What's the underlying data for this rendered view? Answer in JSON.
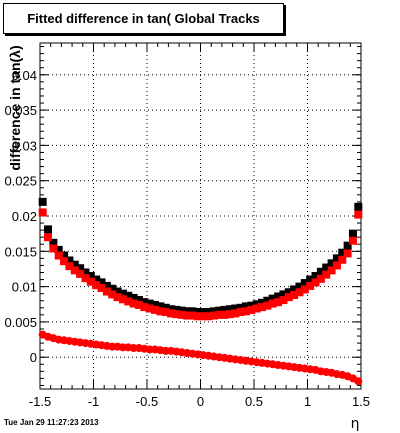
{
  "title": "Fitted difference in tan( Global Tracks",
  "timestamp": "Tue Jan 29 11:27:23 2013",
  "chart_data": {
    "type": "scatter",
    "title": "Fitted difference in tan( Global Tracks",
    "xlabel": "η",
    "ylabel": "difference in tan(λ)",
    "xlim": [
      -1.5,
      1.5
    ],
    "ylim": [
      -0.0045,
      0.0445
    ],
    "grid": true,
    "x_ticks": [
      "-1.5",
      "-1",
      "-0.5",
      "0",
      "0.5",
      "1",
      "1.5"
    ],
    "y_ticks": [
      "0",
      "0.005",
      "0.01",
      "0.015",
      "0.02",
      "0.025",
      "0.03",
      "0.035",
      "0.04"
    ],
    "series": [
      {
        "marker": "square",
        "color": "#000000",
        "x": [
          -1.475,
          -1.425,
          -1.375,
          -1.325,
          -1.275,
          -1.225,
          -1.175,
          -1.125,
          -1.075,
          -1.025,
          -0.975,
          -0.925,
          -0.875,
          -0.825,
          -0.775,
          -0.725,
          -0.675,
          -0.625,
          -0.575,
          -0.525,
          -0.475,
          -0.425,
          -0.375,
          -0.325,
          -0.275,
          -0.225,
          -0.175,
          -0.125,
          -0.075,
          -0.025,
          0.025,
          0.075,
          0.125,
          0.175,
          0.225,
          0.275,
          0.325,
          0.375,
          0.425,
          0.475,
          0.525,
          0.575,
          0.625,
          0.675,
          0.725,
          0.775,
          0.825,
          0.875,
          0.925,
          0.975,
          1.025,
          1.075,
          1.125,
          1.175,
          1.225,
          1.275,
          1.325,
          1.375,
          1.425,
          1.475
        ],
        "values": [
          0.022,
          0.0181,
          0.0162,
          0.0152,
          0.0144,
          0.0137,
          0.0131,
          0.0126,
          0.012,
          0.0115,
          0.011,
          0.0106,
          0.0101,
          0.0097,
          0.0093,
          0.009,
          0.0087,
          0.0084,
          0.0081,
          0.0078,
          0.0076,
          0.0074,
          0.0072,
          0.007,
          0.0068,
          0.0067,
          0.0066,
          0.0065,
          0.0065,
          0.0064,
          0.0064,
          0.0064,
          0.0065,
          0.0066,
          0.0067,
          0.0068,
          0.0069,
          0.007,
          0.0072,
          0.0073,
          0.0075,
          0.0077,
          0.008,
          0.0083,
          0.0086,
          0.0089,
          0.0092,
          0.0096,
          0.01,
          0.0105,
          0.011,
          0.0115,
          0.0121,
          0.0127,
          0.0133,
          0.014,
          0.0148,
          0.0158,
          0.0175,
          0.0213
        ]
      },
      {
        "marker": "square",
        "color": "#ff0000",
        "x": [
          -1.475,
          -1.425,
          -1.375,
          -1.325,
          -1.275,
          -1.225,
          -1.175,
          -1.125,
          -1.075,
          -1.025,
          -0.975,
          -0.925,
          -0.875,
          -0.825,
          -0.775,
          -0.725,
          -0.675,
          -0.625,
          -0.575,
          -0.525,
          -0.475,
          -0.425,
          -0.375,
          -0.325,
          -0.275,
          -0.225,
          -0.175,
          -0.125,
          -0.075,
          -0.025,
          0.025,
          0.075,
          0.125,
          0.175,
          0.225,
          0.275,
          0.325,
          0.375,
          0.425,
          0.475,
          0.525,
          0.575,
          0.625,
          0.675,
          0.725,
          0.775,
          0.825,
          0.875,
          0.925,
          0.975,
          1.025,
          1.075,
          1.125,
          1.175,
          1.225,
          1.275,
          1.325,
          1.375,
          1.425,
          1.475
        ],
        "values": [
          0.0205,
          0.017,
          0.0154,
          0.0144,
          0.0136,
          0.0129,
          0.0123,
          0.0118,
          0.0112,
          0.0107,
          0.0102,
          0.0098,
          0.0093,
          0.0089,
          0.0085,
          0.0082,
          0.0079,
          0.0076,
          0.0074,
          0.0071,
          0.0069,
          0.0067,
          0.0065,
          0.0064,
          0.0062,
          0.0061,
          0.006,
          0.0059,
          0.0059,
          0.0058,
          0.0058,
          0.0058,
          0.0059,
          0.006,
          0.006,
          0.0061,
          0.0062,
          0.0064,
          0.0065,
          0.0067,
          0.0069,
          0.0071,
          0.0073,
          0.0076,
          0.0078,
          0.0081,
          0.0085,
          0.0088,
          0.0092,
          0.0096,
          0.0101,
          0.0106,
          0.0111,
          0.0117,
          0.0123,
          0.013,
          0.0138,
          0.0147,
          0.0165,
          0.0202
        ]
      },
      {
        "marker": "circle",
        "color": "#ff0000",
        "x": [
          -1.475,
          -1.425,
          -1.375,
          -1.325,
          -1.275,
          -1.225,
          -1.175,
          -1.125,
          -1.075,
          -1.025,
          -0.975,
          -0.925,
          -0.875,
          -0.825,
          -0.775,
          -0.725,
          -0.675,
          -0.625,
          -0.575,
          -0.525,
          -0.475,
          -0.425,
          -0.375,
          -0.325,
          -0.275,
          -0.225,
          -0.175,
          -0.125,
          -0.075,
          -0.025,
          0.025,
          0.075,
          0.125,
          0.175,
          0.225,
          0.275,
          0.325,
          0.375,
          0.425,
          0.475,
          0.525,
          0.575,
          0.625,
          0.675,
          0.725,
          0.775,
          0.825,
          0.875,
          0.925,
          0.975,
          1.025,
          1.075,
          1.125,
          1.175,
          1.225,
          1.275,
          1.325,
          1.375,
          1.425,
          1.475
        ],
        "values": [
          0.0032,
          0.0029,
          0.0027,
          0.0025,
          0.0024,
          0.0023,
          0.0022,
          0.0021,
          0.002,
          0.0019,
          0.0018,
          0.0017,
          0.0016,
          0.0015,
          0.0015,
          0.0014,
          0.0014,
          0.0013,
          0.0013,
          0.0012,
          0.0011,
          0.0011,
          0.001,
          0.0009,
          0.0009,
          0.0008,
          0.0007,
          0.0006,
          0.0005,
          0.0004,
          0.0003,
          0.0002,
          0.0001,
          0.0,
          -0.0001,
          -0.0002,
          -0.0003,
          -0.0004,
          -0.0005,
          -0.0006,
          -0.0007,
          -0.0008,
          -0.0009,
          -0.001,
          -0.0011,
          -0.0012,
          -0.0013,
          -0.0014,
          -0.0015,
          -0.0016,
          -0.0017,
          -0.0018,
          -0.002,
          -0.0021,
          -0.0022,
          -0.0024,
          -0.0025,
          -0.0027,
          -0.003,
          -0.0034
        ]
      }
    ]
  }
}
